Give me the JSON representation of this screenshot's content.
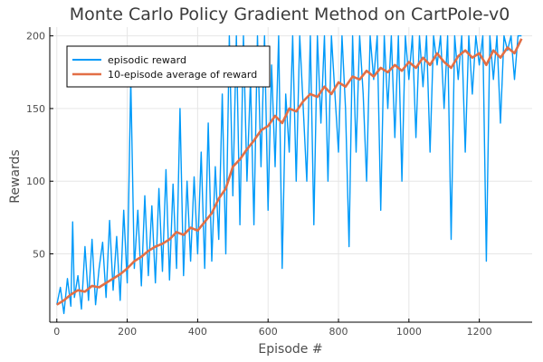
{
  "chart_data": {
    "type": "line",
    "title": "Monte Carlo Policy Gradient Method on CartPole-v0",
    "xlabel": "Episode #",
    "ylabel": "Rewards",
    "xlim": [
      -20,
      1350
    ],
    "ylim": [
      3,
      206
    ],
    "xticks": [
      0,
      200,
      400,
      600,
      800,
      1000,
      1200
    ],
    "yticks": [
      50,
      100,
      150,
      200
    ],
    "grid": true,
    "legend_position": "top-left",
    "colors": {
      "episodic": "#009af9",
      "average": "#e26f46"
    },
    "series": [
      {
        "name": "episodic reward",
        "values": [
          [
            0,
            15
          ],
          [
            10,
            27
          ],
          [
            20,
            9
          ],
          [
            30,
            33
          ],
          [
            40,
            14
          ],
          [
            45,
            72
          ],
          [
            50,
            20
          ],
          [
            60,
            35
          ],
          [
            70,
            12
          ],
          [
            80,
            55
          ],
          [
            90,
            18
          ],
          [
            100,
            60
          ],
          [
            110,
            15
          ],
          [
            120,
            40
          ],
          [
            130,
            58
          ],
          [
            140,
            20
          ],
          [
            150,
            73
          ],
          [
            160,
            25
          ],
          [
            170,
            62
          ],
          [
            180,
            18
          ],
          [
            190,
            80
          ],
          [
            200,
            30
          ],
          [
            210,
            170
          ],
          [
            220,
            40
          ],
          [
            230,
            80
          ],
          [
            240,
            28
          ],
          [
            250,
            90
          ],
          [
            260,
            35
          ],
          [
            270,
            83
          ],
          [
            280,
            30
          ],
          [
            290,
            95
          ],
          [
            300,
            38
          ],
          [
            310,
            108
          ],
          [
            320,
            32
          ],
          [
            330,
            98
          ],
          [
            340,
            40
          ],
          [
            350,
            150
          ],
          [
            360,
            35
          ],
          [
            370,
            100
          ],
          [
            380,
            45
          ],
          [
            390,
            103
          ],
          [
            400,
            50
          ],
          [
            410,
            120
          ],
          [
            420,
            40
          ],
          [
            430,
            140
          ],
          [
            440,
            45
          ],
          [
            450,
            110
          ],
          [
            460,
            60
          ],
          [
            470,
            160
          ],
          [
            480,
            50
          ],
          [
            490,
            200
          ],
          [
            500,
            90
          ],
          [
            510,
            200
          ],
          [
            520,
            70
          ],
          [
            530,
            200
          ],
          [
            540,
            100
          ],
          [
            550,
            170
          ],
          [
            560,
            70
          ],
          [
            570,
            200
          ],
          [
            580,
            110
          ],
          [
            590,
            200
          ],
          [
            600,
            80
          ],
          [
            610,
            180
          ],
          [
            620,
            110
          ],
          [
            630,
            200
          ],
          [
            640,
            40
          ],
          [
            650,
            160
          ],
          [
            660,
            120
          ],
          [
            670,
            200
          ],
          [
            680,
            100
          ],
          [
            690,
            200
          ],
          [
            700,
            150
          ],
          [
            710,
            100
          ],
          [
            720,
            200
          ],
          [
            730,
            70
          ],
          [
            740,
            200
          ],
          [
            750,
            140
          ],
          [
            760,
            200
          ],
          [
            770,
            100
          ],
          [
            780,
            200
          ],
          [
            790,
            160
          ],
          [
            800,
            120
          ],
          [
            810,
            200
          ],
          [
            820,
            150
          ],
          [
            830,
            55
          ],
          [
            840,
            200
          ],
          [
            850,
            120
          ],
          [
            860,
            200
          ],
          [
            870,
            160
          ],
          [
            880,
            100
          ],
          [
            890,
            200
          ],
          [
            900,
            170
          ],
          [
            910,
            200
          ],
          [
            920,
            80
          ],
          [
            930,
            200
          ],
          [
            940,
            150
          ],
          [
            950,
            200
          ],
          [
            960,
            130
          ],
          [
            970,
            200
          ],
          [
            980,
            100
          ],
          [
            990,
            200
          ],
          [
            1000,
            170
          ],
          [
            1010,
            200
          ],
          [
            1020,
            130
          ],
          [
            1030,
            200
          ],
          [
            1040,
            165
          ],
          [
            1050,
            200
          ],
          [
            1060,
            120
          ],
          [
            1070,
            200
          ],
          [
            1080,
            180
          ],
          [
            1090,
            200
          ],
          [
            1100,
            150
          ],
          [
            1110,
            200
          ],
          [
            1120,
            60
          ],
          [
            1130,
            200
          ],
          [
            1140,
            170
          ],
          [
            1150,
            200
          ],
          [
            1160,
            120
          ],
          [
            1170,
            200
          ],
          [
            1180,
            160
          ],
          [
            1190,
            200
          ],
          [
            1200,
            180
          ],
          [
            1210,
            200
          ],
          [
            1220,
            45
          ],
          [
            1230,
            200
          ],
          [
            1240,
            170
          ],
          [
            1250,
            200
          ],
          [
            1260,
            140
          ],
          [
            1270,
            200
          ],
          [
            1280,
            190
          ],
          [
            1290,
            200
          ],
          [
            1300,
            170
          ],
          [
            1310,
            200
          ],
          [
            1320,
            200
          ]
        ]
      },
      {
        "name": "10-episode average of reward",
        "values": [
          [
            0,
            15
          ],
          [
            20,
            18
          ],
          [
            40,
            22
          ],
          [
            60,
            25
          ],
          [
            80,
            24
          ],
          [
            100,
            28
          ],
          [
            120,
            27
          ],
          [
            140,
            30
          ],
          [
            160,
            33
          ],
          [
            180,
            36
          ],
          [
            200,
            40
          ],
          [
            220,
            45
          ],
          [
            240,
            48
          ],
          [
            260,
            52
          ],
          [
            280,
            55
          ],
          [
            300,
            57
          ],
          [
            320,
            60
          ],
          [
            340,
            65
          ],
          [
            360,
            63
          ],
          [
            380,
            68
          ],
          [
            400,
            66
          ],
          [
            420,
            72
          ],
          [
            440,
            78
          ],
          [
            460,
            88
          ],
          [
            480,
            95
          ],
          [
            500,
            110
          ],
          [
            520,
            115
          ],
          [
            540,
            122
          ],
          [
            560,
            128
          ],
          [
            580,
            135
          ],
          [
            600,
            138
          ],
          [
            620,
            145
          ],
          [
            640,
            140
          ],
          [
            660,
            150
          ],
          [
            680,
            148
          ],
          [
            700,
            155
          ],
          [
            720,
            160
          ],
          [
            740,
            158
          ],
          [
            760,
            165
          ],
          [
            780,
            160
          ],
          [
            800,
            168
          ],
          [
            820,
            165
          ],
          [
            840,
            172
          ],
          [
            860,
            170
          ],
          [
            880,
            176
          ],
          [
            900,
            172
          ],
          [
            920,
            178
          ],
          [
            940,
            175
          ],
          [
            960,
            180
          ],
          [
            980,
            176
          ],
          [
            1000,
            182
          ],
          [
            1020,
            178
          ],
          [
            1040,
            185
          ],
          [
            1060,
            180
          ],
          [
            1080,
            188
          ],
          [
            1100,
            182
          ],
          [
            1120,
            178
          ],
          [
            1140,
            186
          ],
          [
            1160,
            190
          ],
          [
            1180,
            185
          ],
          [
            1200,
            188
          ],
          [
            1220,
            180
          ],
          [
            1240,
            190
          ],
          [
            1260,
            185
          ],
          [
            1280,
            192
          ],
          [
            1300,
            188
          ],
          [
            1320,
            198
          ]
        ]
      }
    ]
  }
}
